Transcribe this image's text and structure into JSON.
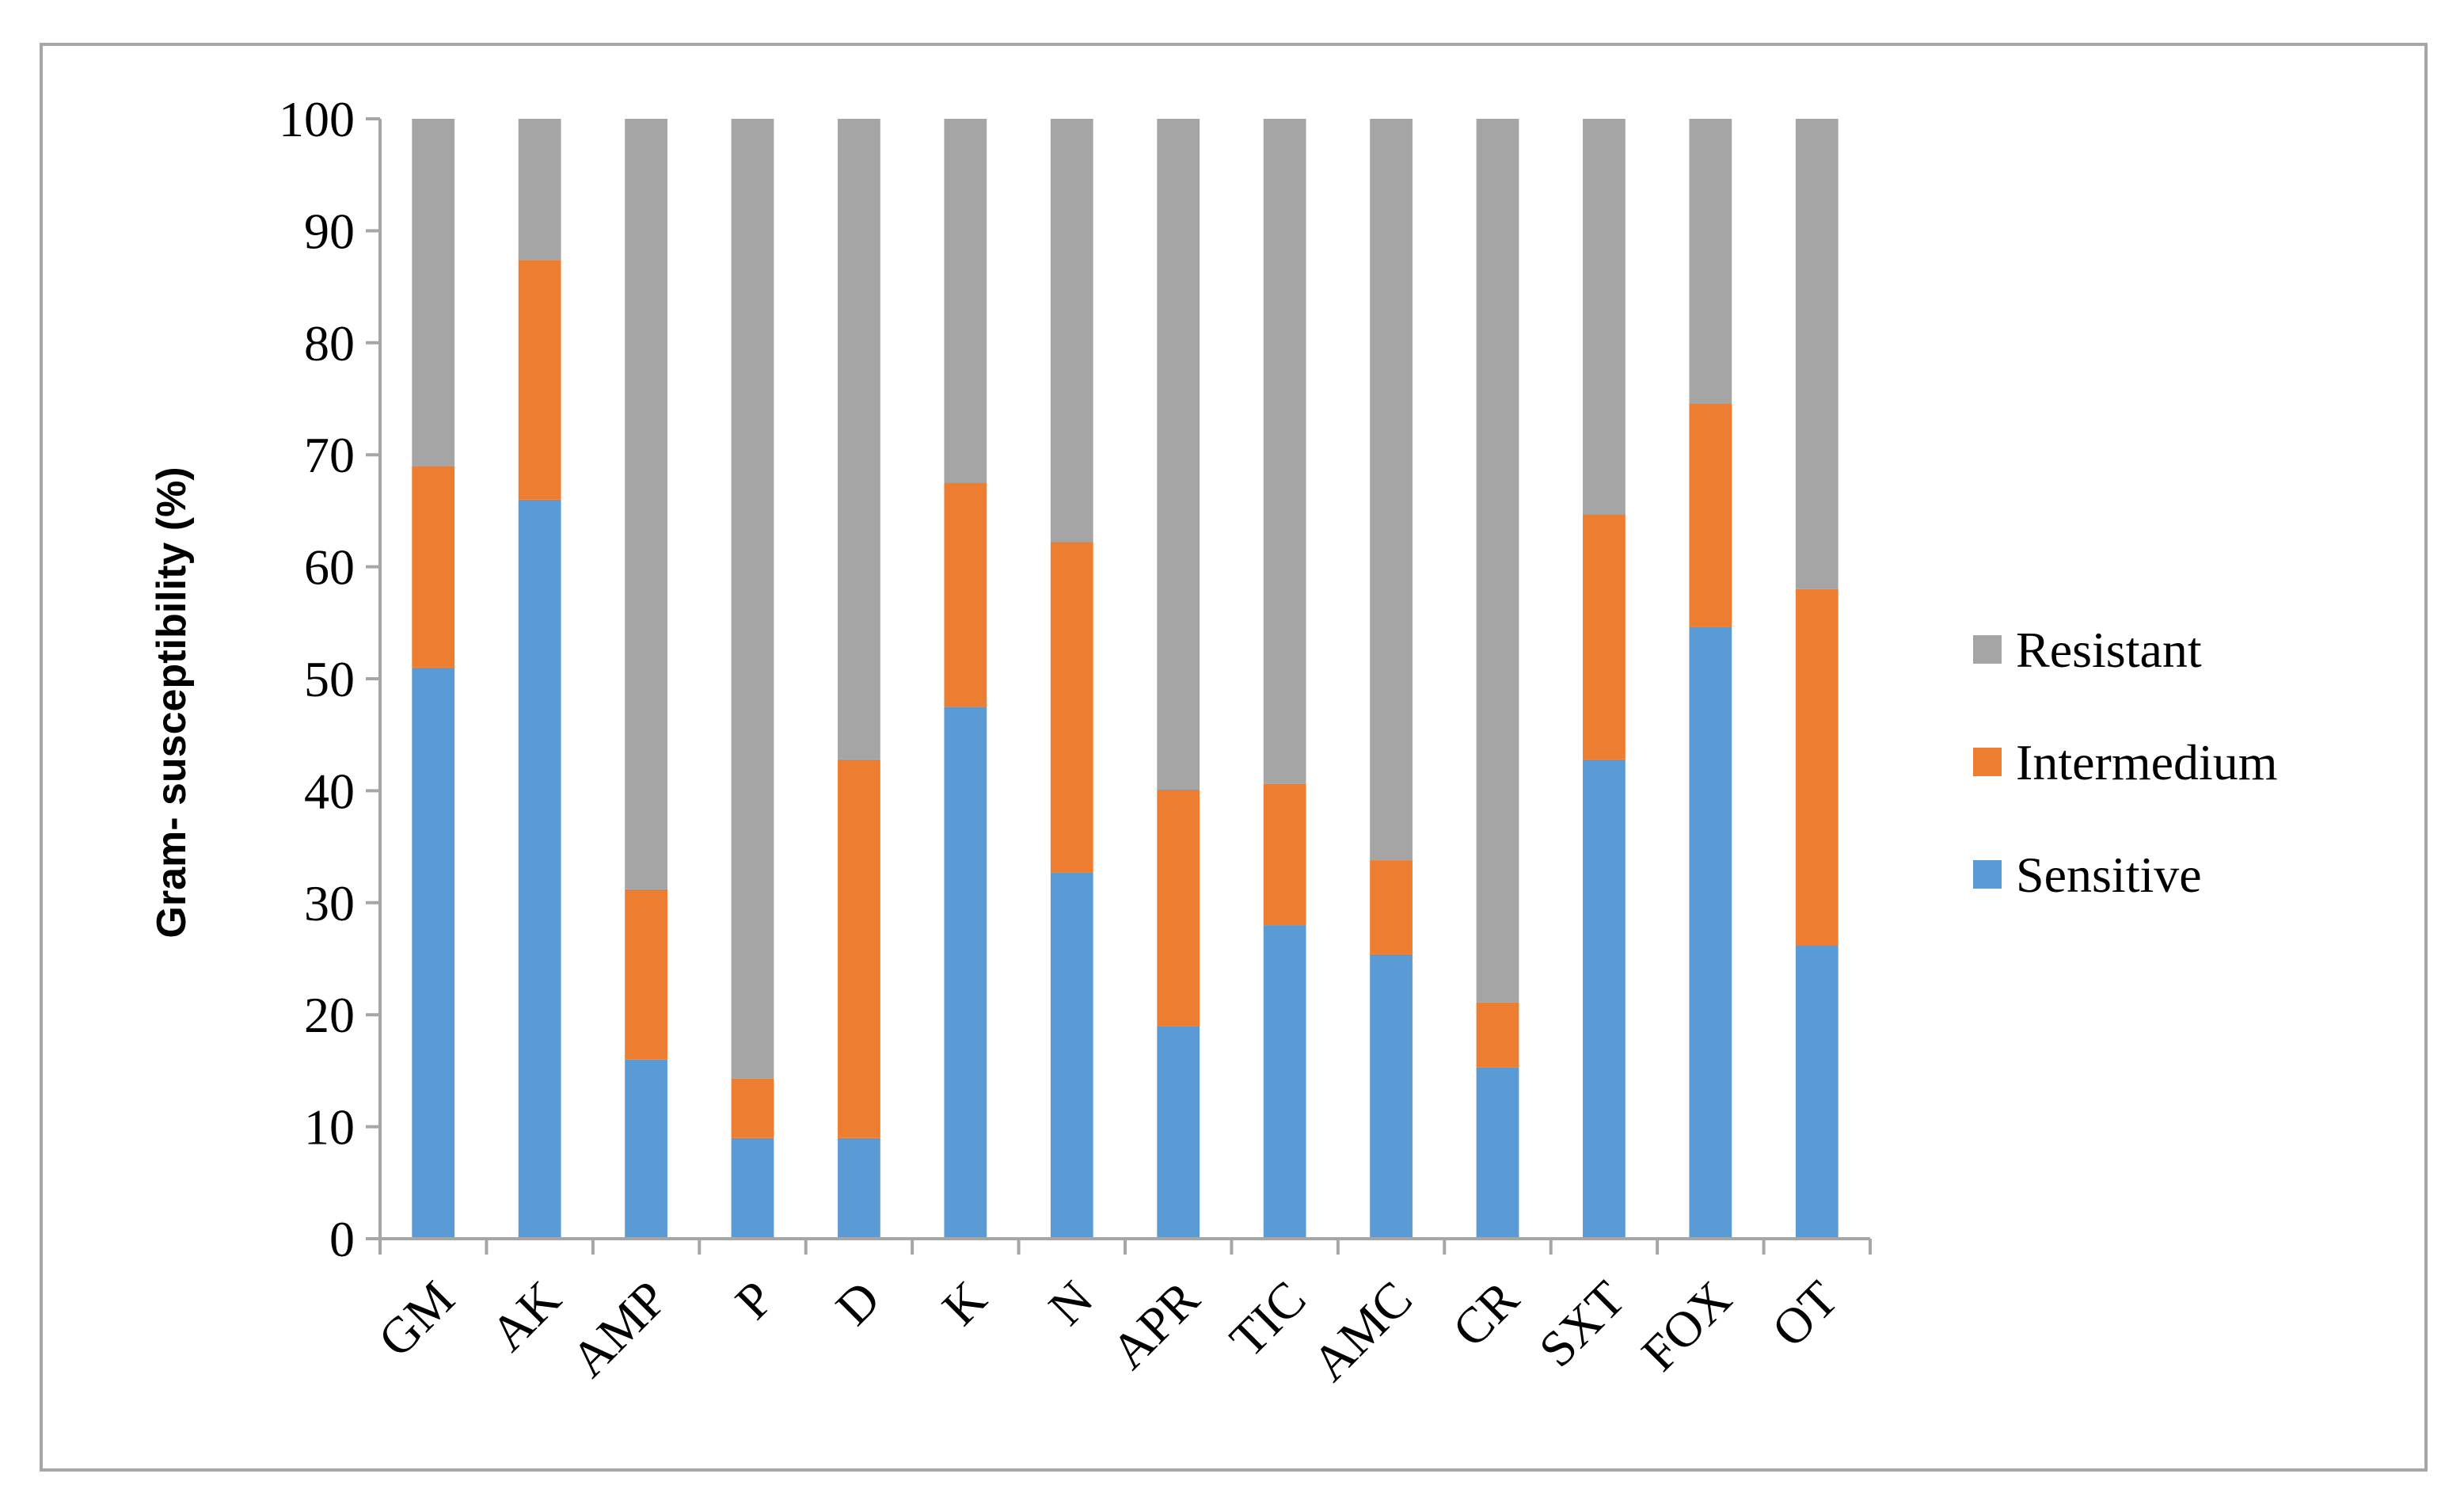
{
  "chart_data": {
    "type": "bar",
    "stacked": true,
    "categories": [
      "GM",
      "AK",
      "AMP",
      "P",
      "D",
      "K",
      "N",
      "APR",
      "TIC",
      "AMC",
      "CR",
      "SXT",
      "FOX",
      "OT"
    ],
    "series": [
      {
        "name": "Sensitive",
        "color": "#5b9bd5",
        "values": [
          51,
          66,
          16,
          9,
          9,
          47.5,
          32.7,
          19,
          28,
          25.4,
          15.3,
          42.8,
          54.6,
          26.2
        ]
      },
      {
        "name": "Intermedium",
        "color": "#ed7d31",
        "values": [
          18,
          21.4,
          15.2,
          5.3,
          33.8,
          20,
          29.5,
          21.1,
          12.6,
          8.4,
          5.8,
          21.9,
          20,
          31.8
        ]
      },
      {
        "name": "Resistant",
        "color": "#a5a5a5",
        "values": [
          31,
          12.6,
          68.8,
          85.7,
          57.2,
          32.5,
          37.8,
          59.9,
          59.4,
          66.2,
          78.9,
          35.3,
          25.4,
          42
        ]
      }
    ],
    "title": "",
    "xlabel": "",
    "ylabel": "Gram- susceptibility (%)",
    "ylim": [
      0,
      100
    ],
    "yticks": [
      "0",
      "10",
      "20",
      "30",
      "40",
      "50",
      "60",
      "70",
      "80",
      "90",
      "100"
    ],
    "legend_position": "right",
    "legend_order": [
      "Resistant",
      "Intermedium",
      "Sensitive"
    ],
    "grid": false
  }
}
